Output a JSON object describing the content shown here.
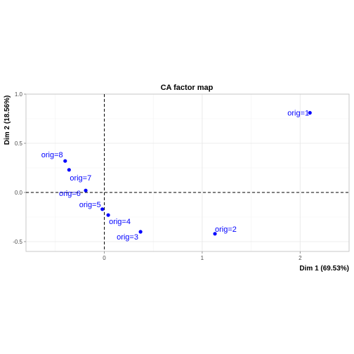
{
  "chart_data": {
    "type": "scatter",
    "title": "CA factor map",
    "xlabel": "Dim 1 (69.53%)",
    "ylabel": "Dim 2 (18.56%)",
    "xlim": [
      -0.8,
      2.5
    ],
    "ylim": [
      -0.6,
      1.0
    ],
    "x_ticks": [
      0,
      1,
      2
    ],
    "x_tick_labels": [
      "0",
      "1",
      "2"
    ],
    "y_ticks": [
      -0.5,
      0.0,
      0.5,
      1.0
    ],
    "y_tick_labels": [
      "-0.5",
      "0.0",
      "0.5",
      "1.0"
    ],
    "grid": true,
    "reference_lines": {
      "x": 0,
      "y": 0,
      "style": "dashed"
    },
    "point_color": "#0000ff",
    "points": [
      {
        "label": "orig=1",
        "x": 2.1,
        "y": 0.81
      },
      {
        "label": "orig=2",
        "x": 1.13,
        "y": -0.42
      },
      {
        "label": "orig=3",
        "x": 0.37,
        "y": -0.4
      },
      {
        "label": "orig=4",
        "x": 0.04,
        "y": -0.23
      },
      {
        "label": "orig=5",
        "x": -0.02,
        "y": -0.17
      },
      {
        "label": "orig=6",
        "x": -0.19,
        "y": 0.02
      },
      {
        "label": "orig=7",
        "x": -0.36,
        "y": 0.23
      },
      {
        "label": "orig=8",
        "x": -0.4,
        "y": 0.32
      }
    ]
  }
}
